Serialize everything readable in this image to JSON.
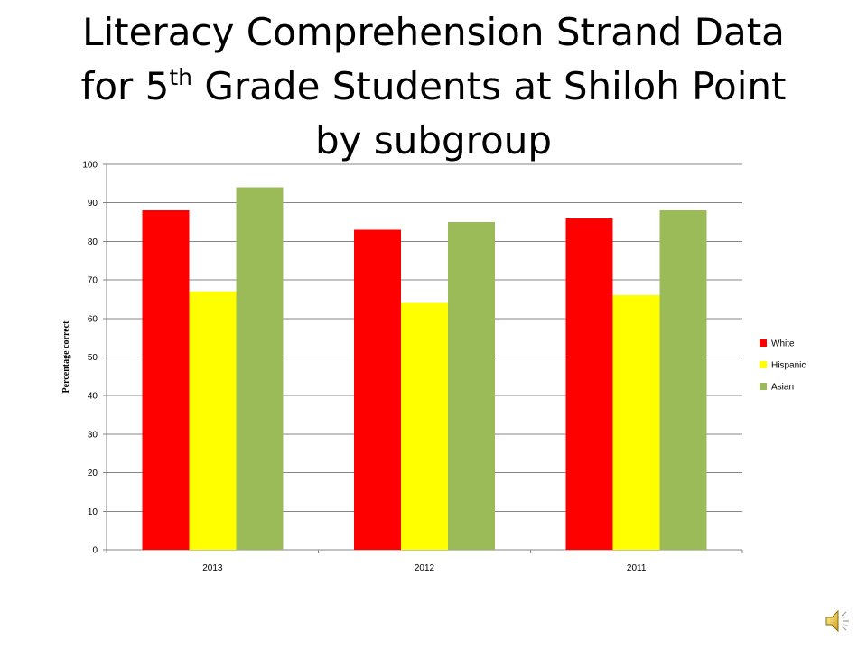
{
  "title": {
    "line1": "Literacy Comprehension Strand Data",
    "line2_pre": "for 5",
    "line2_sup": "th",
    "line2_post": " Grade Students at Shiloh Point",
    "line3": "by subgroup"
  },
  "chart_data": {
    "type": "bar",
    "categories": [
      "2013",
      "2012",
      "2011"
    ],
    "series": [
      {
        "name": "White",
        "color": "#ff0000",
        "values": [
          88,
          83,
          86
        ]
      },
      {
        "name": "Hispanic",
        "color": "#ffff00",
        "values": [
          67,
          64,
          66
        ]
      },
      {
        "name": "Asian",
        "color": "#9bbb59",
        "values": [
          94,
          85,
          88
        ]
      }
    ],
    "ylabel": "Percentage correct",
    "xlabel": "",
    "ylim": [
      0,
      100
    ],
    "yticks": [
      0,
      10,
      20,
      30,
      40,
      50,
      60,
      70,
      80,
      90,
      100
    ],
    "grid": true,
    "legend_position": "right"
  },
  "icons": {
    "speaker": "speaker-icon"
  }
}
